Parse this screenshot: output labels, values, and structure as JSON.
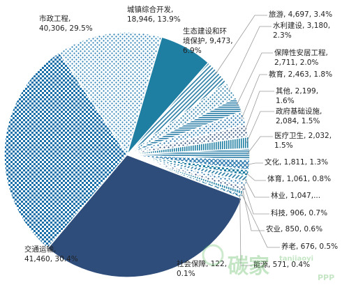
{
  "chart_data": {
    "type": "pie",
    "title": "",
    "slices": [
      {
        "name": "交通运输",
        "value": 41460,
        "percent": "30.4%",
        "color": "#2e4d7b",
        "pattern": "solid",
        "label": [
          "交通运输,",
          "41,460, 30.4%"
        ]
      },
      {
        "name": "市政工程",
        "value": 40306,
        "percent": "29.5%",
        "color": "#1b6fa8",
        "pattern": "checker",
        "label": [
          "市政工程,",
          "40,306, 29.5%"
        ]
      },
      {
        "name": "城镇综合开发",
        "value": 18946,
        "percent": "13.9%",
        "color": "#2c82b5",
        "pattern": "dots",
        "label": [
          "城镇综合开发,",
          "18,946, 13.9%"
        ]
      },
      {
        "name": "生态建设和环境保护",
        "value": 9473,
        "percent": "6.9%",
        "color": "#1f7fa3",
        "pattern": "solid",
        "label": [
          "生态建设和环",
          "境保护, 9,473,",
          "6.9%"
        ]
      },
      {
        "name": "旅游",
        "value": 4697,
        "percent": "3.4%",
        "color": "#2a7da6",
        "pattern": "diagonal",
        "label": [
          "旅游, 4,697, 3.4%"
        ]
      },
      {
        "name": "水利建设",
        "value": 3180,
        "percent": "2.3%",
        "color": "#2a7da6",
        "pattern": "dots",
        "label": [
          "水利建设, 3,180,",
          "2.3%"
        ]
      },
      {
        "name": "保障性安居工程",
        "value": 2711,
        "percent": "2.0%",
        "color": "#2a7da6",
        "pattern": "hline",
        "label": [
          "保障性安居工程,",
          "2,711, 2.0%"
        ]
      },
      {
        "name": "教育",
        "value": 2463,
        "percent": "1.8%",
        "color": "#1b6fa8",
        "pattern": "dots",
        "label": [
          "教育, 2,463, 1.8%"
        ]
      },
      {
        "name": "其他",
        "value": 2199,
        "percent": "1.6%",
        "color": "#2e4d7b",
        "pattern": "dots",
        "label": [
          "其他, 2,199,",
          "1.6%"
        ]
      },
      {
        "name": "政府基础设施",
        "value": 2084,
        "percent": "1.5%",
        "color": "#1f7fa3",
        "pattern": "vline",
        "label": [
          "政府基础设施,",
          "2,084, 1.5%"
        ]
      },
      {
        "name": "医疗卫生",
        "value": 2032,
        "percent": "1.5%",
        "color": "#2a7da6",
        "pattern": "hline",
        "label": [
          "医疗卫生, 2,032,",
          "1.5%"
        ]
      },
      {
        "name": "文化",
        "value": 1811,
        "percent": "1.3%",
        "color": "#1b6fa8",
        "pattern": "cross",
        "label": [
          "文化, 1,811, 1.3%"
        ]
      },
      {
        "name": "体育",
        "value": 1061,
        "percent": "0.8%",
        "color": "#1f7fa3",
        "pattern": "checker",
        "label": [
          "体育, 1,061, 0.8%"
        ]
      },
      {
        "name": "林业",
        "value": 1047,
        "percent": "0.8%",
        "color": "#2a7da6",
        "pattern": "diagonal",
        "label": [
          "林业, 1,047,..."
        ]
      },
      {
        "name": "科技",
        "value": 906,
        "percent": "0.7%",
        "color": "#1b6fa8",
        "pattern": "dots",
        "label": [
          "科技, 906, 0.7%"
        ]
      },
      {
        "name": "农业",
        "value": 850,
        "percent": "0.6%",
        "color": "#2e4d7b",
        "pattern": "dots",
        "label": [
          "农业, 850, 0.6%"
        ]
      },
      {
        "name": "养老",
        "value": 676,
        "percent": "0.5%",
        "color": "#1f7fa3",
        "pattern": "vline",
        "label": [
          "养老, 676, 0.5%"
        ]
      },
      {
        "name": "能源",
        "value": 571,
        "percent": "0.4%",
        "color": "#2a7da6",
        "pattern": "cross",
        "label": [
          "能源, 571, 0.4%"
        ]
      },
      {
        "name": "社会保障",
        "value": 122,
        "percent": "0.1%",
        "color": "#1b6fa8",
        "pattern": "solid",
        "label": [
          "社会保障, 122,",
          "0.1%"
        ]
      }
    ]
  },
  "watermark": {
    "brand_text": "碳家",
    "id_text": "tanjiaoyi",
    "source_text": "PPP"
  }
}
